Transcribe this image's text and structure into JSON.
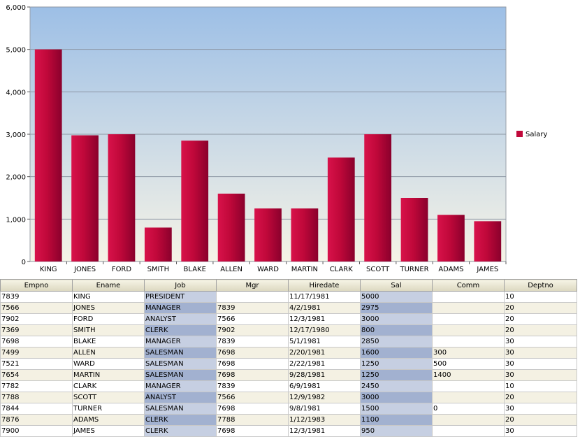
{
  "chart_data": {
    "type": "bar",
    "categories": [
      "KING",
      "JONES",
      "FORD",
      "SMITH",
      "BLAKE",
      "ALLEN",
      "WARD",
      "MARTIN",
      "CLARK",
      "SCOTT",
      "TURNER",
      "ADAMS",
      "JAMES"
    ],
    "series": [
      {
        "name": "Salary",
        "values": [
          5000,
          2975,
          3000,
          800,
          2850,
          1600,
          1250,
          1250,
          2450,
          3000,
          1500,
          1100,
          950
        ]
      }
    ],
    "title": "",
    "xlabel": "",
    "ylabel": "",
    "ylim": [
      0,
      6000
    ],
    "yticks": [
      "0",
      "1,000",
      "2,000",
      "3,000",
      "4,000",
      "5,000",
      "6,000"
    ],
    "grid": true,
    "legend_position": "right",
    "colors": {
      "bar": "#c0083a",
      "plot_top": "#9dbfe6",
      "plot_bottom": "#f6f3e6"
    }
  },
  "table": {
    "columns": [
      "Empno",
      "Ename",
      "Job",
      "Mgr",
      "Hiredate",
      "Sal",
      "Comm",
      "Deptno"
    ],
    "rows": [
      [
        "7839",
        "KING",
        "PRESIDENT",
        "",
        "11/17/1981",
        "5000",
        "",
        "10"
      ],
      [
        "7566",
        "JONES",
        "MANAGER",
        "7839",
        "4/2/1981",
        "2975",
        "",
        "20"
      ],
      [
        "7902",
        "FORD",
        "ANALYST",
        "7566",
        "12/3/1981",
        "3000",
        "",
        "20"
      ],
      [
        "7369",
        "SMITH",
        "CLERK",
        "7902",
        "12/17/1980",
        "800",
        "",
        "20"
      ],
      [
        "7698",
        "BLAKE",
        "MANAGER",
        "7839",
        "5/1/1981",
        "2850",
        "",
        "30"
      ],
      [
        "7499",
        "ALLEN",
        "SALESMAN",
        "7698",
        "2/20/1981",
        "1600",
        "300",
        "30"
      ],
      [
        "7521",
        "WARD",
        "SALESMAN",
        "7698",
        "2/22/1981",
        "1250",
        "500",
        "30"
      ],
      [
        "7654",
        "MARTIN",
        "SALESMAN",
        "7698",
        "9/28/1981",
        "1250",
        "1400",
        "30"
      ],
      [
        "7782",
        "CLARK",
        "MANAGER",
        "7839",
        "6/9/1981",
        "2450",
        "",
        "10"
      ],
      [
        "7788",
        "SCOTT",
        "ANALYST",
        "7566",
        "12/9/1982",
        "3000",
        "",
        "20"
      ],
      [
        "7844",
        "TURNER",
        "SALESMAN",
        "7698",
        "9/8/1981",
        "1500",
        "0",
        "30"
      ],
      [
        "7876",
        "ADAMS",
        "CLERK",
        "7788",
        "1/12/1983",
        "1100",
        "",
        "20"
      ],
      [
        "7900",
        "JAMES",
        "CLERK",
        "7698",
        "12/3/1981",
        "950",
        "",
        "30"
      ]
    ],
    "highlight_columns": [
      "Job",
      "Sal"
    ],
    "colors": {
      "header": "#e8e5d0",
      "row_alt": "#f4f1e3",
      "highlight": "#c6cfe2",
      "highlight_alt": "#a2b1d0"
    }
  }
}
